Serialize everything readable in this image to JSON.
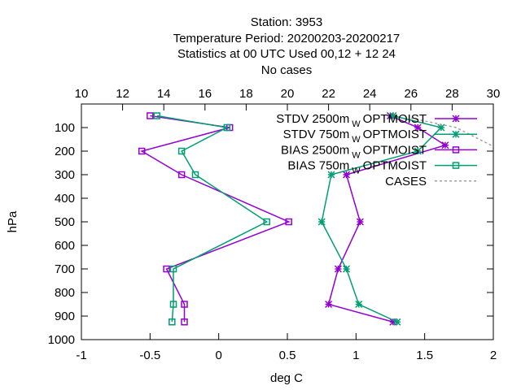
{
  "chart_data": {
    "type": "line",
    "title_lines": [
      "Station:     3953",
      "Temperature  Period: 20200203-20200217",
      "Statistics at 00 UTC  Used  00,12  + 12 24",
      "No cases"
    ],
    "xlabel": "deg C",
    "ylabel": "hPa",
    "xlim": [
      -1,
      2
    ],
    "x2lim": [
      10,
      30
    ],
    "ylim": [
      1000,
      0
    ],
    "x_ticks": [
      -1,
      -0.5,
      0,
      0.5,
      1,
      1.5,
      2
    ],
    "x_tick_labels": [
      "-1",
      "-0.5",
      "0",
      "0.5",
      "1",
      "1.5",
      "2"
    ],
    "x2_ticks": [
      10,
      12,
      14,
      16,
      18,
      20,
      22,
      24,
      26,
      28,
      30
    ],
    "x2_tick_labels": [
      "10",
      "12",
      "14",
      "16",
      "18",
      "20",
      "22",
      "24",
      "26",
      "28",
      "30"
    ],
    "y_ticks": [
      100,
      200,
      300,
      400,
      500,
      600,
      700,
      800,
      900,
      1000
    ],
    "y_tick_labels": [
      "100",
      "200",
      "300",
      "400",
      "500",
      "600",
      "700",
      "800",
      "900",
      "1000"
    ],
    "grid": false,
    "legend_position": "top-right",
    "series": [
      {
        "name_main": "STDV 2500m",
        "name_sub": "W",
        "name_tail": "OPTMOIST",
        "color": "#9400d3",
        "marker": "star",
        "x": [
          1.25,
          1.45,
          1.65,
          0.93,
          1.03,
          0.87,
          0.8,
          1.27
        ],
        "y": [
          50,
          100,
          175,
          300,
          500,
          700,
          850,
          925
        ]
      },
      {
        "name_main": "STDV 750m",
        "name_sub": "W",
        "name_tail": "OPTMOIST",
        "color": "#009e73",
        "marker": "star",
        "x": [
          1.27,
          1.62,
          1.45,
          0.82,
          0.75,
          0.93,
          1.02,
          1.3
        ],
        "y": [
          50,
          100,
          200,
          300,
          500,
          700,
          850,
          925
        ]
      },
      {
        "name_main": "BIAS 2500m",
        "name_sub": "W",
        "name_tail": "OPTMOIST",
        "color": "#9400d3",
        "marker": "square",
        "x": [
          -0.5,
          0.08,
          -0.56,
          -0.27,
          0.51,
          -0.38,
          -0.25,
          -0.25
        ],
        "y": [
          50,
          100,
          200,
          300,
          500,
          700,
          850,
          925
        ]
      },
      {
        "name_main": "BIAS 750m",
        "name_sub": "W",
        "name_tail": "OPTMOIST",
        "color": "#009e73",
        "marker": "square",
        "x": [
          -0.45,
          0.06,
          -0.27,
          -0.17,
          0.35,
          -0.33,
          -0.33,
          -0.34
        ],
        "y": [
          50,
          100,
          200,
          300,
          500,
          700,
          850,
          925
        ]
      },
      {
        "name_main": "CASES",
        "name_sub": "",
        "name_tail": "",
        "color": "#a0a0a0",
        "marker": "none",
        "axis": "x2",
        "x": [
          26.0,
          28.2,
          30.0
        ],
        "y": [
          60,
          100,
          180
        ]
      }
    ]
  }
}
